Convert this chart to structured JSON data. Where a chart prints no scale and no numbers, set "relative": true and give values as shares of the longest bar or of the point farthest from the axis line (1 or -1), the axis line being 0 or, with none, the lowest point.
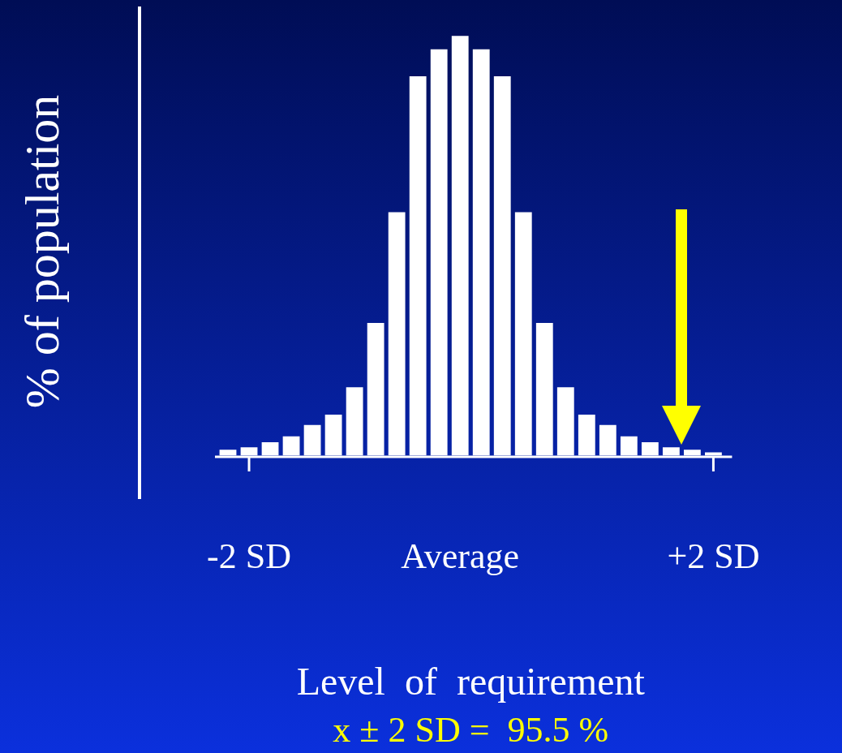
{
  "chart_data": {
    "type": "bar",
    "relative": true,
    "xlabel": "Level  of  requirement",
    "ylabel": "% of population",
    "categories": [
      null,
      "-2 SD",
      null,
      null,
      null,
      null,
      null,
      null,
      null,
      null,
      null,
      "Average",
      null,
      null,
      null,
      null,
      null,
      null,
      null,
      null,
      null,
      null,
      null,
      "+2 SD"
    ],
    "values": [
      0.014,
      0.02,
      0.032,
      0.046,
      0.073,
      0.098,
      0.163,
      0.316,
      0.58,
      0.904,
      0.968,
      1,
      0.968,
      0.904,
      0.58,
      0.316,
      0.163,
      0.098,
      0.073,
      0.046,
      0.032,
      0.02,
      0.014,
      0.008
    ],
    "color": "#ffffff",
    "annotations": [
      "x ± 2 SD =  95.5 %"
    ],
    "grid": false,
    "legend": false
  }
}
